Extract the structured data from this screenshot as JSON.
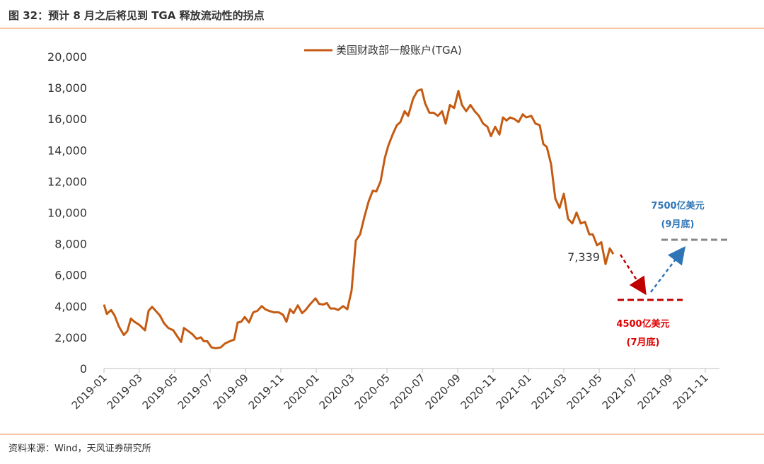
{
  "chart_data": {
    "type": "line",
    "title": "图 32：预计 8 月之后将见到 TGA 释放流动性的拐点",
    "source": "资料来源：Wind，天风证券研究所",
    "x": [
      0,
      0.16,
      0.4,
      0.6,
      0.84,
      1.12,
      1.32,
      1.52,
      1.72,
      2,
      2.32,
      2.52,
      2.72,
      2.92,
      3.16,
      3.4,
      3.64,
      3.92,
      4.12,
      4.36,
      4.52,
      4.76,
      5,
      5.24,
      5.48,
      5.64,
      5.84,
      6.08,
      6.32,
      6.6,
      6.84,
      7.12,
      7.36,
      7.56,
      7.76,
      7.96,
      8.2,
      8.44,
      8.68,
      8.92,
      9.12,
      9.32,
      9.6,
      9.88,
      10.12,
      10.32,
      10.52,
      10.72,
      10.96,
      11.2,
      11.4,
      11.64,
      11.96,
      12.16,
      12.4,
      12.6,
      12.8,
      13.04,
      13.24,
      13.52,
      13.76,
      14,
      14.24,
      14.48,
      14.72,
      14.96,
      15.2,
      15.4,
      15.64,
      15.88,
      16.08,
      16.32,
      16.56,
      16.76,
      17,
      17.2,
      17.48,
      17.72,
      17.96,
      18.16,
      18.4,
      18.64,
      18.88,
      19.12,
      19.32,
      19.56,
      19.8,
      20.04,
      20.24,
      20.48,
      20.72,
      20.96,
      21.2,
      21.44,
      21.68,
      21.88,
      22.12,
      22.36,
      22.56,
      22.76,
      22.96,
      23.2,
      23.44,
      23.68,
      23.88,
      24.16,
      24.4,
      24.64,
      24.84,
      25.04,
      25.28,
      25.52,
      25.76,
      26,
      26.24,
      26.48,
      26.72,
      26.96,
      27.2,
      27.44,
      27.64,
      27.88,
      28.12,
      28.36,
      28.6,
      28.8
    ],
    "series": [
      {
        "name": "美国财政部一般账户(TGA)",
        "color": "#c55a11",
        "values": [
          4100,
          3500,
          3750,
          3400,
          2700,
          2150,
          2400,
          3200,
          3000,
          2800,
          2450,
          3700,
          3950,
          3700,
          3400,
          2900,
          2600,
          2450,
          2100,
          1700,
          2600,
          2400,
          2200,
          1900,
          2000,
          1750,
          1750,
          1350,
          1300,
          1350,
          1600,
          1750,
          1850,
          2950,
          3000,
          3300,
          2950,
          3600,
          3700,
          4000,
          3800,
          3700,
          3600,
          3600,
          3450,
          3000,
          3800,
          3550,
          4050,
          3550,
          3750,
          4100,
          4500,
          4150,
          4100,
          4200,
          3850,
          3850,
          3750,
          4000,
          3800,
          5000,
          8200,
          8600,
          9700,
          10700,
          11400,
          11350,
          12000,
          13500,
          14300,
          15000,
          15600,
          15800,
          16500,
          16200,
          17300,
          17800,
          17900,
          17000,
          16400,
          16400,
          16200,
          16500,
          15700,
          16900,
          16700,
          17800,
          16900,
          16500,
          16900,
          16500,
          16200,
          15700,
          15500,
          14900,
          15500,
          15000,
          16100,
          15900,
          16100,
          16000,
          15800,
          16300,
          16100,
          16200,
          15700,
          15600,
          14400,
          14200,
          13100,
          10900,
          10300,
          11200,
          9600,
          9300,
          10000,
          9300,
          9400,
          8600,
          8600,
          7900,
          8100,
          6700,
          7700,
          7339
        ]
      }
    ],
    "xlim": [
      0,
      34.8
    ],
    "xticks": [
      {
        "value": 0,
        "label": "2019-01"
      },
      {
        "value": 2,
        "label": "2019-03"
      },
      {
        "value": 4,
        "label": "2019-05"
      },
      {
        "value": 6,
        "label": "2019-07"
      },
      {
        "value": 8,
        "label": "2019-09"
      },
      {
        "value": 10,
        "label": "2019-11"
      },
      {
        "value": 12,
        "label": "2020-01"
      },
      {
        "value": 14,
        "label": "2020-03"
      },
      {
        "value": 16,
        "label": "2020-05"
      },
      {
        "value": 18,
        "label": "2020-07"
      },
      {
        "value": 20,
        "label": "2020-09"
      },
      {
        "value": 22,
        "label": "2020-11"
      },
      {
        "value": 24,
        "label": "2021-01"
      },
      {
        "value": 26,
        "label": "2021-03"
      },
      {
        "value": 28,
        "label": "2021-05"
      },
      {
        "value": 30,
        "label": "2021-07"
      },
      {
        "value": 32,
        "label": "2021-09"
      },
      {
        "value": 34,
        "label": "2021-11"
      }
    ],
    "ylim": [
      0,
      20000
    ],
    "yticks": [
      0,
      {
        "value": 2000,
        "label": "2,000"
      },
      {
        "value": 4000,
        "label": "4,000"
      },
      {
        "value": 6000,
        "label": "6,000"
      },
      {
        "value": 8000,
        "label": "8,000"
      },
      {
        "value": 10000,
        "label": "10,000"
      },
      {
        "value": 12000,
        "label": "12,000"
      },
      {
        "value": 14000,
        "label": "14,000"
      },
      {
        "value": 16000,
        "label": "16,000"
      },
      {
        "value": 18000,
        "label": "18,000"
      },
      {
        "value": 20000,
        "label": "20,000"
      }
    ],
    "annotations": [
      "7,339",
      "7500亿美元",
      "(9月底)",
      "4500亿美元",
      "(7月底)"
    ]
  }
}
